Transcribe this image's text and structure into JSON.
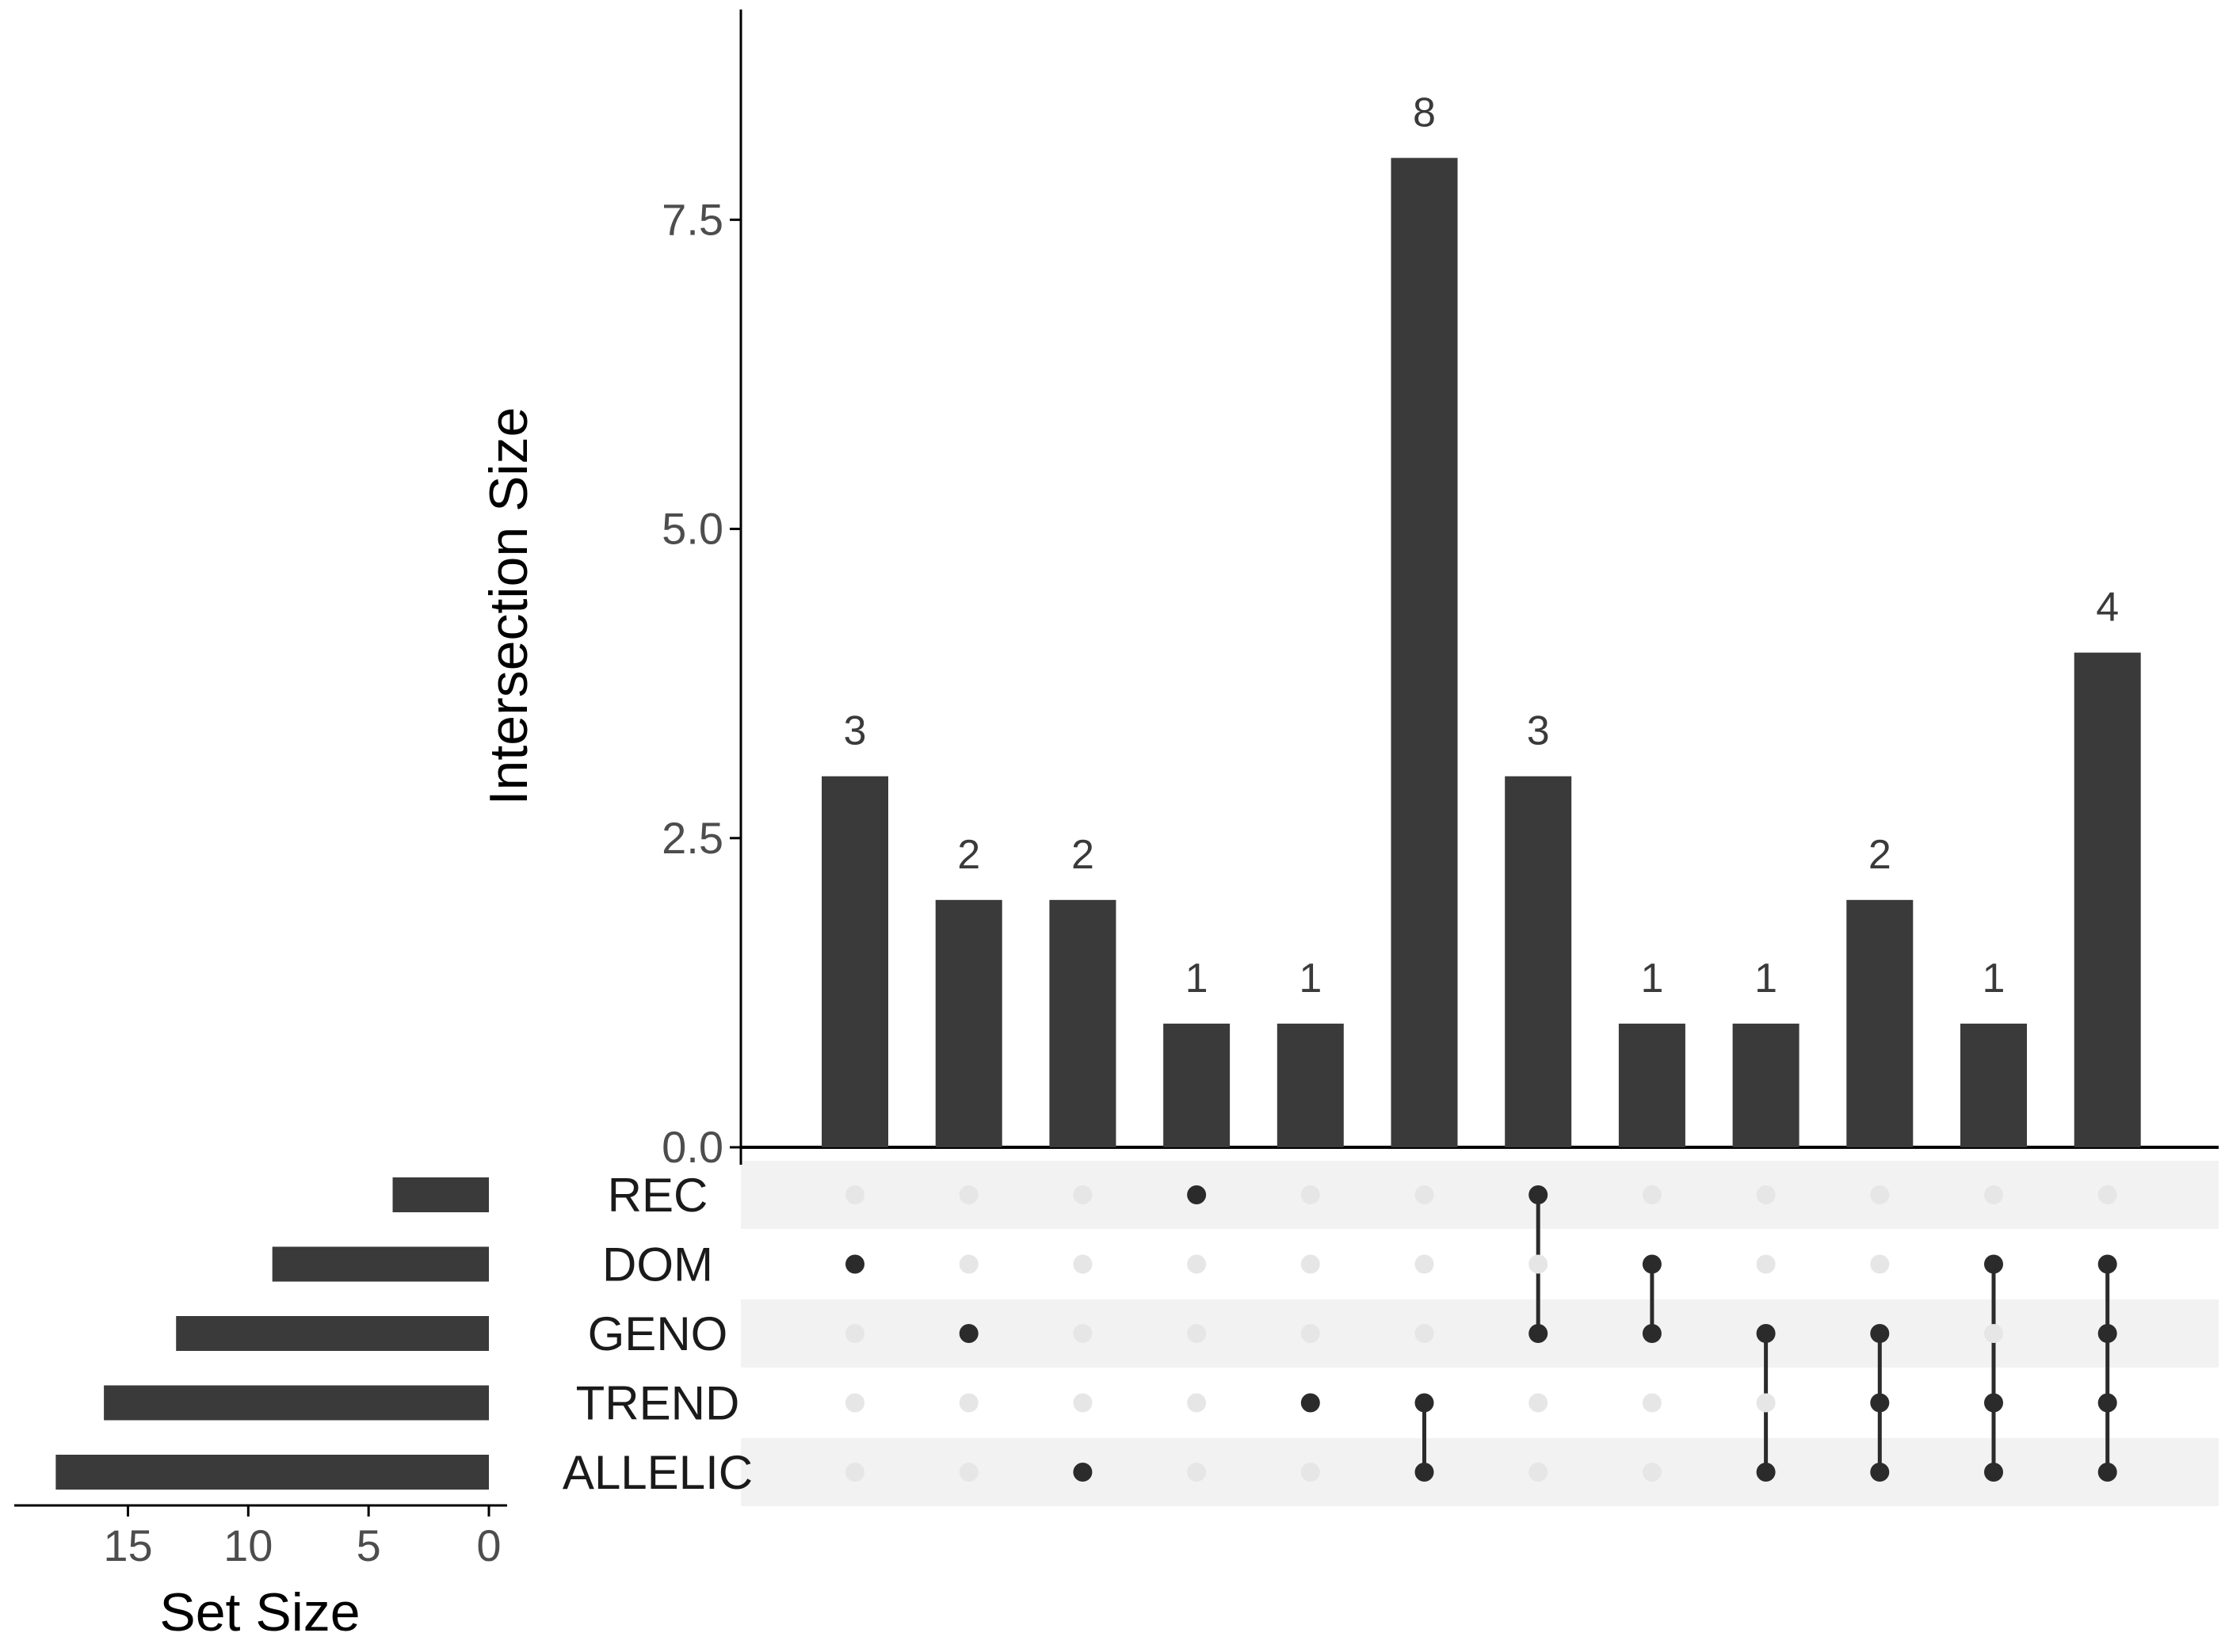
{
  "chart_data": {
    "type": "upset",
    "colors": {
      "bar": "#3a3a3a",
      "dot_active": "#2b2b2b",
      "dot_inactive": "#e6e6e6",
      "stripe": "#f2f2f2",
      "axis": "#000000"
    },
    "intersection_axis": {
      "title": "Intersection Size",
      "ylim": [
        0,
        9.2
      ],
      "ticks": [
        0,
        2.5,
        5,
        7.5
      ],
      "tick_labels": [
        "0.0",
        "2.5",
        "5.0",
        "7.5"
      ]
    },
    "set_size_axis": {
      "title": "Set Size",
      "xlim": [
        0,
        19
      ],
      "ticks": [
        15,
        10,
        5,
        0
      ],
      "tick_labels": [
        "15",
        "10",
        "5",
        "0"
      ]
    },
    "sets": [
      {
        "name": "REC",
        "size": 4
      },
      {
        "name": "DOM",
        "size": 9
      },
      {
        "name": "GENO",
        "size": 13
      },
      {
        "name": "TREND",
        "size": 16
      },
      {
        "name": "ALLELIC",
        "size": 18
      }
    ],
    "intersections": [
      {
        "sets": [
          "DOM"
        ],
        "size": 3,
        "label": "3"
      },
      {
        "sets": [
          "GENO"
        ],
        "size": 2,
        "label": "2"
      },
      {
        "sets": [
          "ALLELIC"
        ],
        "size": 2,
        "label": "2"
      },
      {
        "sets": [
          "REC"
        ],
        "size": 1,
        "label": "1"
      },
      {
        "sets": [
          "TREND"
        ],
        "size": 1,
        "label": "1"
      },
      {
        "sets": [
          "TREND",
          "ALLELIC"
        ],
        "size": 8,
        "label": "8"
      },
      {
        "sets": [
          "REC",
          "GENO"
        ],
        "size": 3,
        "label": "3"
      },
      {
        "sets": [
          "DOM",
          "GENO"
        ],
        "size": 1,
        "label": "1"
      },
      {
        "sets": [
          "GENO",
          "ALLELIC"
        ],
        "size": 1,
        "label": "1"
      },
      {
        "sets": [
          "GENO",
          "TREND",
          "ALLELIC"
        ],
        "size": 2,
        "label": "2"
      },
      {
        "sets": [
          "DOM",
          "TREND",
          "ALLELIC"
        ],
        "size": 1,
        "label": "1"
      },
      {
        "sets": [
          "DOM",
          "GENO",
          "TREND",
          "ALLELIC"
        ],
        "size": 4,
        "label": "4"
      }
    ]
  }
}
